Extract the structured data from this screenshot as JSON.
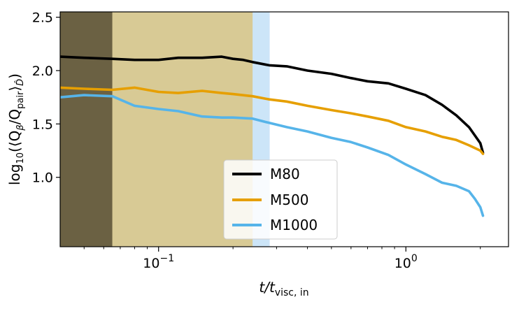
{
  "chart_data": {
    "type": "line",
    "xscale": "log",
    "xlim": [
      0.04,
      2.6
    ],
    "ylim": [
      0.35,
      2.55
    ],
    "xlabel_base": "t/t",
    "xlabel_sub": "visc, in",
    "ylabel_prefix": "log",
    "ylabel_sub10": "10",
    "ylabel_mid": "(⟨Q",
    "ylabel_sub_beta": "β",
    "ylabel_slash": "/Q",
    "ylabel_sub_pair": "pair",
    "ylabel_close": "⟩",
    "ylabel_sub_d": "D̂",
    "ylabel_end": ")",
    "yticks": [
      {
        "value": 1.0,
        "label": "1.0"
      },
      {
        "value": 1.5,
        "label": "1.5"
      },
      {
        "value": 2.0,
        "label": "2.0"
      },
      {
        "value": 2.5,
        "label": "2.5"
      }
    ],
    "xticks": [
      {
        "value": 0.1,
        "base": "10",
        "exp": "−1"
      },
      {
        "value": 1.0,
        "base": "10",
        "exp": "0"
      }
    ],
    "shaded_regions": [
      {
        "x0": 0.04,
        "x1": 0.065,
        "color": "#6b6143"
      },
      {
        "x0": 0.065,
        "x1": 0.24,
        "color": "#d8ca95"
      },
      {
        "x0": 0.24,
        "x1": 0.28,
        "color": "#cce5f8"
      }
    ],
    "series": [
      {
        "name": "M80",
        "color": "#000000",
        "x": [
          0.04,
          0.05,
          0.065,
          0.08,
          0.1,
          0.12,
          0.15,
          0.18,
          0.2,
          0.22,
          0.24,
          0.28,
          0.33,
          0.4,
          0.5,
          0.6,
          0.7,
          0.85,
          1.0,
          1.2,
          1.4,
          1.6,
          1.8,
          2.0,
          2.05
        ],
        "y": [
          2.13,
          2.12,
          2.11,
          2.1,
          2.1,
          2.12,
          2.12,
          2.13,
          2.11,
          2.1,
          2.08,
          2.05,
          2.04,
          2.0,
          1.97,
          1.93,
          1.9,
          1.88,
          1.83,
          1.77,
          1.68,
          1.58,
          1.47,
          1.32,
          1.23
        ]
      },
      {
        "name": "M500",
        "color": "#e69f00",
        "x": [
          0.04,
          0.05,
          0.065,
          0.08,
          0.1,
          0.12,
          0.15,
          0.18,
          0.2,
          0.24,
          0.28,
          0.33,
          0.4,
          0.5,
          0.6,
          0.7,
          0.85,
          1.0,
          1.2,
          1.4,
          1.6,
          1.8,
          2.0,
          2.05
        ],
        "y": [
          1.84,
          1.83,
          1.82,
          1.84,
          1.8,
          1.79,
          1.81,
          1.79,
          1.78,
          1.76,
          1.73,
          1.71,
          1.67,
          1.63,
          1.6,
          1.57,
          1.53,
          1.47,
          1.43,
          1.38,
          1.35,
          1.3,
          1.25,
          1.22
        ]
      },
      {
        "name": "M1000",
        "color": "#56b4e9",
        "x": [
          0.04,
          0.05,
          0.065,
          0.08,
          0.1,
          0.12,
          0.15,
          0.18,
          0.2,
          0.24,
          0.28,
          0.33,
          0.4,
          0.5,
          0.6,
          0.7,
          0.85,
          1.0,
          1.2,
          1.4,
          1.6,
          1.8,
          1.9,
          2.0,
          2.05
        ],
        "y": [
          1.75,
          1.77,
          1.76,
          1.67,
          1.64,
          1.62,
          1.57,
          1.56,
          1.56,
          1.55,
          1.51,
          1.47,
          1.43,
          1.37,
          1.33,
          1.28,
          1.21,
          1.12,
          1.03,
          0.95,
          0.92,
          0.87,
          0.8,
          0.72,
          0.64
        ]
      }
    ],
    "legend": {
      "position": "lower-center",
      "entries": [
        "M80",
        "M500",
        "M1000"
      ]
    }
  }
}
